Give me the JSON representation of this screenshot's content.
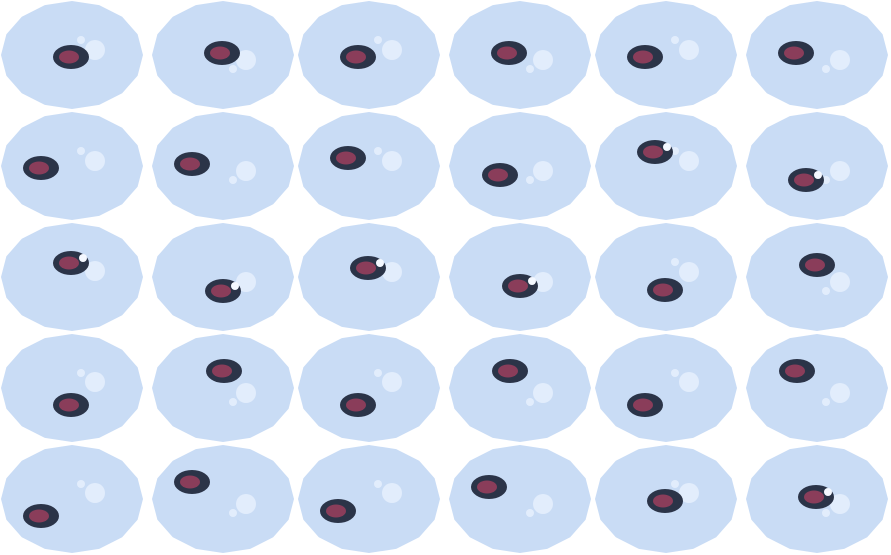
{
  "colors": {
    "background": "#ffffff",
    "blob": "#c9dcf5",
    "outer_ring": "#2b3448",
    "inner_core": "#8a3d5a",
    "light_spot": "#e2edfc",
    "white_dot": "#f4f8ff"
  },
  "grid": {
    "rows": 5,
    "cols": 6
  }
}
